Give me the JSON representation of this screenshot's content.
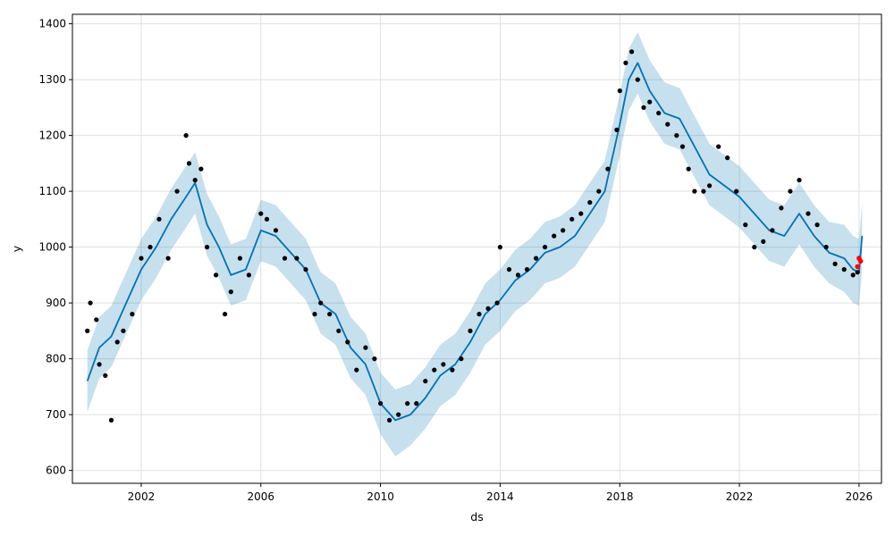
{
  "chart_data": {
    "type": "line",
    "title": "",
    "xlabel": "ds",
    "ylabel": "y",
    "xlim": [
      1999.7,
      2026.75
    ],
    "ylim": [
      577,
      1417
    ],
    "grid": true,
    "x_ticks": [
      2002,
      2006,
      2010,
      2014,
      2018,
      2022,
      2026
    ],
    "x_tick_labels": [
      "2002",
      "2006",
      "2010",
      "2014",
      "2018",
      "2022",
      "2026"
    ],
    "y_ticks": [
      600,
      700,
      800,
      900,
      1000,
      1100,
      1200,
      1300,
      1400
    ],
    "y_tick_labels": [
      "600",
      "700",
      "800",
      "900",
      "1000",
      "1100",
      "1200",
      "1300",
      "1400"
    ],
    "colors": {
      "actual": "#000000",
      "forecast": "#0072B2",
      "interval": "#0072B2",
      "recent": "#ff0000",
      "grid": "#e0e0e0"
    },
    "series": [
      {
        "role": "forecast",
        "x": [
          2000.2,
          2000.6,
          2001.0,
          2001.5,
          2002.0,
          2002.5,
          2003.0,
          2003.5,
          2003.8,
          2004.2,
          2004.6,
          2005.0,
          2005.5,
          2006.0,
          2006.5,
          2007.0,
          2007.5,
          2008.0,
          2008.5,
          2009.0,
          2009.5,
          2010.0,
          2010.5,
          2011.0,
          2011.5,
          2012.0,
          2012.5,
          2013.0,
          2013.5,
          2014.0,
          2014.5,
          2015.0,
          2015.5,
          2016.0,
          2016.5,
          2017.0,
          2017.5,
          2018.0,
          2018.3,
          2018.6,
          2019.0,
          2019.5,
          2020.0,
          2020.5,
          2021.0,
          2021.5,
          2022.0,
          2022.5,
          2023.0,
          2023.5,
          2024.0,
          2024.5,
          2025.0,
          2025.5,
          2025.8,
          2026.0,
          2026.1
        ],
        "y": [
          760,
          820,
          840,
          900,
          960,
          1000,
          1050,
          1090,
          1115,
          1040,
          1000,
          950,
          960,
          1030,
          1020,
          990,
          960,
          900,
          880,
          820,
          790,
          720,
          690,
          700,
          730,
          770,
          790,
          830,
          880,
          905,
          940,
          960,
          990,
          1000,
          1020,
          1060,
          1100,
          1220,
          1300,
          1330,
          1280,
          1240,
          1230,
          1180,
          1130,
          1110,
          1090,
          1060,
          1030,
          1020,
          1060,
          1020,
          990,
          980,
          960,
          955,
          1020
        ]
      },
      {
        "role": "interval",
        "x": [
          2000.2,
          2000.6,
          2001.0,
          2001.5,
          2002.0,
          2002.5,
          2003.0,
          2003.5,
          2003.8,
          2004.2,
          2004.6,
          2005.0,
          2005.5,
          2006.0,
          2006.5,
          2007.0,
          2007.5,
          2008.0,
          2008.5,
          2009.0,
          2009.5,
          2010.0,
          2010.5,
          2011.0,
          2011.5,
          2012.0,
          2012.5,
          2013.0,
          2013.5,
          2014.0,
          2014.5,
          2015.0,
          2015.5,
          2016.0,
          2016.5,
          2017.0,
          2017.5,
          2018.0,
          2018.3,
          2018.6,
          2019.0,
          2019.5,
          2020.0,
          2020.5,
          2021.0,
          2021.5,
          2022.0,
          2022.5,
          2023.0,
          2023.5,
          2024.0,
          2024.5,
          2025.0,
          2025.5,
          2025.8,
          2026.0,
          2026.1
        ],
        "lower": [
          705,
          765,
          785,
          845,
          905,
          945,
          995,
          1035,
          1060,
          985,
          945,
          895,
          905,
          975,
          965,
          935,
          905,
          845,
          825,
          765,
          735,
          665,
          625,
          645,
          675,
          715,
          735,
          775,
          825,
          850,
          885,
          905,
          935,
          945,
          965,
          1005,
          1045,
          1165,
          1245,
          1275,
          1225,
          1185,
          1175,
          1125,
          1075,
          1055,
          1035,
          1005,
          975,
          965,
          1005,
          965,
          935,
          920,
          900,
          895,
          960
        ],
        "upper": [
          815,
          875,
          895,
          955,
          1015,
          1055,
          1105,
          1145,
          1170,
          1095,
          1055,
          1005,
          1015,
          1085,
          1075,
          1045,
          1015,
          955,
          935,
          875,
          845,
          775,
          745,
          755,
          785,
          825,
          845,
          885,
          935,
          960,
          995,
          1015,
          1045,
          1055,
          1075,
          1115,
          1155,
          1275,
          1355,
          1385,
          1335,
          1295,
          1285,
          1235,
          1185,
          1165,
          1145,
          1115,
          1085,
          1075,
          1115,
          1075,
          1045,
          1040,
          1020,
          1015,
          1080
        ]
      },
      {
        "role": "actual",
        "x": [
          2000.2,
          2000.3,
          2000.5,
          2000.6,
          2000.8,
          2001.0,
          2001.2,
          2001.4,
          2001.7,
          2002.0,
          2002.3,
          2002.6,
          2002.9,
          2003.2,
          2003.5,
          2003.6,
          2003.8,
          2004.0,
          2004.2,
          2004.5,
          2004.8,
          2005.0,
          2005.3,
          2005.6,
          2006.0,
          2006.2,
          2006.5,
          2006.8,
          2007.2,
          2007.5,
          2007.8,
          2008.0,
          2008.3,
          2008.6,
          2008.9,
          2009.2,
          2009.5,
          2009.8,
          2010.0,
          2010.3,
          2010.6,
          2010.9,
          2011.2,
          2011.5,
          2011.8,
          2012.1,
          2012.4,
          2012.7,
          2013.0,
          2013.3,
          2013.6,
          2013.9,
          2014.0,
          2014.3,
          2014.6,
          2014.9,
          2015.2,
          2015.5,
          2015.8,
          2016.1,
          2016.4,
          2016.7,
          2017.0,
          2017.3,
          2017.6,
          2017.9,
          2018.0,
          2018.2,
          2018.4,
          2018.6,
          2018.8,
          2019.0,
          2019.3,
          2019.6,
          2019.9,
          2020.1,
          2020.3,
          2020.5,
          2020.8,
          2021.0,
          2021.3,
          2021.6,
          2021.9,
          2022.2,
          2022.5,
          2022.8,
          2023.1,
          2023.4,
          2023.7,
          2024.0,
          2024.3,
          2024.6,
          2024.9,
          2025.2,
          2025.5,
          2025.8,
          2025.95
        ],
        "y": [
          850,
          900,
          870,
          790,
          770,
          690,
          830,
          850,
          880,
          980,
          1000,
          1050,
          980,
          1100,
          1200,
          1150,
          1120,
          1140,
          1000,
          950,
          880,
          920,
          980,
          950,
          1060,
          1050,
          1030,
          980,
          980,
          960,
          880,
          900,
          880,
          850,
          830,
          780,
          820,
          800,
          720,
          690,
          700,
          720,
          720,
          760,
          780,
          790,
          780,
          800,
          850,
          880,
          890,
          900,
          1000,
          960,
          950,
          960,
          980,
          1000,
          1020,
          1030,
          1050,
          1060,
          1080,
          1100,
          1140,
          1210,
          1280,
          1330,
          1350,
          1300,
          1250,
          1260,
          1240,
          1220,
          1200,
          1180,
          1140,
          1100,
          1100,
          1110,
          1180,
          1160,
          1100,
          1040,
          1000,
          1010,
          1030,
          1070,
          1100,
          1120,
          1060,
          1040,
          1000,
          970,
          960,
          950,
          955
        ]
      },
      {
        "role": "recent",
        "x": [
          2025.95,
          2026.0,
          2026.05
        ],
        "y": [
          965,
          980,
          975
        ]
      }
    ]
  }
}
